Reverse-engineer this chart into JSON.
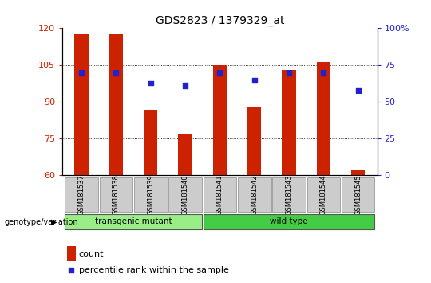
{
  "title": "GDS2823 / 1379329_at",
  "samples": [
    "GSM181537",
    "GSM181538",
    "GSM181539",
    "GSM181540",
    "GSM181541",
    "GSM181542",
    "GSM181543",
    "GSM181544",
    "GSM181545"
  ],
  "counts": [
    118,
    118,
    87,
    77,
    105,
    88,
    103,
    106,
    62
  ],
  "percentiles": [
    70,
    70,
    63,
    61,
    70,
    65,
    70,
    70,
    58
  ],
  "ylim_left": [
    60,
    120
  ],
  "ylim_right": [
    0,
    100
  ],
  "yticks_left": [
    60,
    75,
    90,
    105,
    120
  ],
  "yticks_right": [
    0,
    25,
    50,
    75,
    100
  ],
  "bar_color": "#cc2200",
  "dot_color": "#2222cc",
  "groups": [
    {
      "label": "transgenic mutant",
      "start": 0,
      "end": 4,
      "color": "#99ee88"
    },
    {
      "label": "wild type",
      "start": 4,
      "end": 9,
      "color": "#44cc44"
    }
  ],
  "group_label": "genotype/variation",
  "legend_count_label": "count",
  "legend_percentile_label": "percentile rank within the sample",
  "bar_width": 0.4,
  "fig_width": 5.4,
  "fig_height": 3.54
}
